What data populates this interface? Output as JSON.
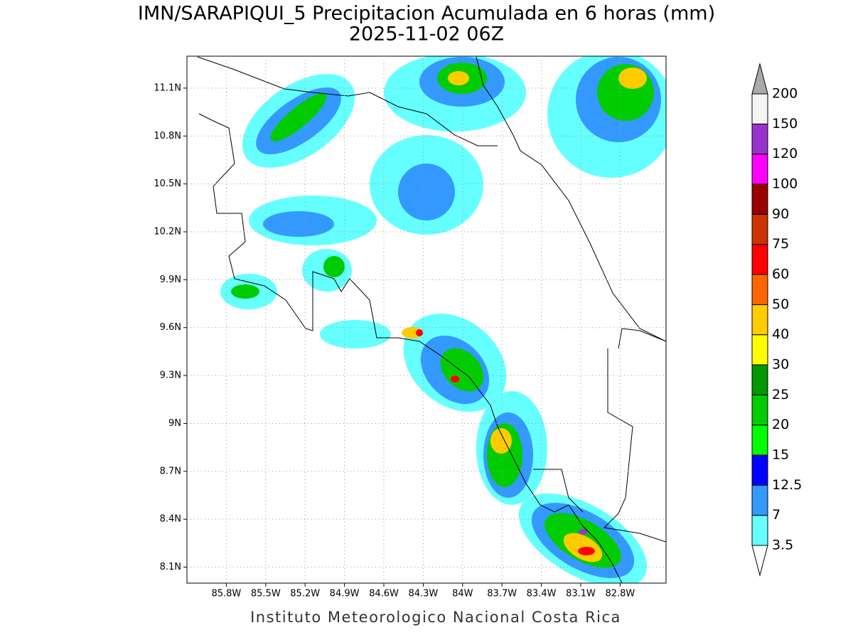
{
  "title": "IMN/SARAPIQUI_5 Precipitacion Acumulada en 6 horas (mm)",
  "subtitle": "2025-11-02 06Z",
  "map": {
    "xlim": [
      -86.1,
      -82.45
    ],
    "ylim": [
      8.0,
      11.3
    ],
    "xticks": [
      {
        "value": -85.8,
        "label": "85.8W"
      },
      {
        "value": -85.5,
        "label": "85.5W"
      },
      {
        "value": -85.2,
        "label": "85.2W"
      },
      {
        "value": -84.9,
        "label": "84.9W"
      },
      {
        "value": -84.6,
        "label": "84.6W"
      },
      {
        "value": -84.3,
        "label": "84.3W"
      },
      {
        "value": -84.0,
        "label": "84W"
      },
      {
        "value": -83.7,
        "label": "83.7W"
      },
      {
        "value": -83.4,
        "label": "83.4W"
      },
      {
        "value": -83.1,
        "label": "83.1W"
      },
      {
        "value": -82.8,
        "label": "82.8W"
      }
    ],
    "yticks": [
      {
        "value": 8.1,
        "label": "8.1N"
      },
      {
        "value": 8.4,
        "label": "8.4N"
      },
      {
        "value": 8.7,
        "label": "8.7N"
      },
      {
        "value": 9.0,
        "label": "9N"
      },
      {
        "value": 9.3,
        "label": "9.3N"
      },
      {
        "value": 9.6,
        "label": "9.6N"
      },
      {
        "value": 9.9,
        "label": "9.9N"
      },
      {
        "value": 10.2,
        "label": "10.2N"
      },
      {
        "value": 10.5,
        "label": "10.5N"
      },
      {
        "value": 10.8,
        "label": "10.8N"
      },
      {
        "value": 11.1,
        "label": "11.1N"
      }
    ],
    "grid": true
  },
  "colorbar": {
    "levels": [
      3.5,
      7,
      12.5,
      15,
      20,
      25,
      30,
      40,
      50,
      60,
      75,
      90,
      100,
      120,
      150,
      200
    ],
    "colors": [
      "#66ffff",
      "#3399ff",
      "#0000ff",
      "#00ff00",
      "#00cc00",
      "#009900",
      "#ffff00",
      "#ffcc00",
      "#ff6600",
      "#ff0000",
      "#cc3300",
      "#990000",
      "#ff00ff",
      "#9933cc",
      "#f4f4f4"
    ],
    "under_color": "#ffffff",
    "over_color": "#aaaaaa"
  },
  "footer": "Instituto Meteorologico Nacional Costa Rica"
}
